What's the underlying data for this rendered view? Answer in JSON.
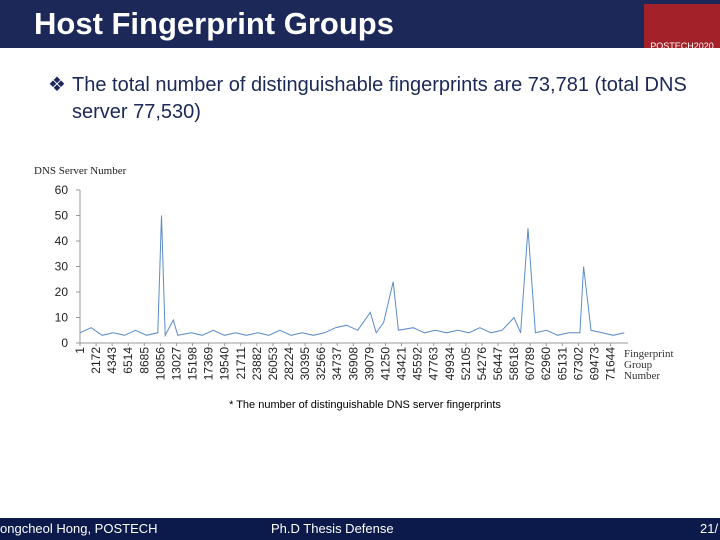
{
  "header": {
    "title": "Host Fingerprint Groups",
    "logo": "POSTECH2020"
  },
  "bullet": "The total number of distinguishable fingerprints are 73,781 (total DNS server 77,530)",
  "chart_data": {
    "type": "line",
    "y_label": "DNS Server Number",
    "x_label": "Fingerprint Group Number",
    "x": [
      1,
      1500,
      3000,
      4500,
      6000,
      7500,
      9000,
      10500,
      11000,
      11500,
      12600,
      13200,
      15000,
      16500,
      18000,
      19500,
      21000,
      22500,
      24000,
      25500,
      27000,
      28500,
      30000,
      31500,
      33000,
      34500,
      36000,
      37500,
      39200,
      40000,
      41000,
      42300,
      43000,
      45000,
      46500,
      48000,
      49500,
      51000,
      52500,
      54000,
      55500,
      57000,
      58600,
      59500,
      60500,
      61500,
      63000,
      64500,
      66000,
      67500,
      68000,
      69000,
      70500,
      72000,
      73500
    ],
    "series": [
      {
        "name": "DNS Server Number",
        "color": "#5b8cc8",
        "values": [
          4,
          6,
          3,
          4,
          3,
          5,
          3,
          4,
          50,
          3,
          9,
          3,
          4,
          3,
          5,
          3,
          4,
          3,
          4,
          3,
          5,
          3,
          4,
          3,
          4,
          6,
          7,
          5,
          12,
          4,
          8,
          24,
          5,
          6,
          4,
          5,
          4,
          5,
          4,
          6,
          4,
          5,
          10,
          4,
          45,
          4,
          5,
          3,
          4,
          4,
          30,
          5,
          4,
          3,
          4
        ]
      }
    ],
    "xlim": [
      0,
      74000
    ],
    "xticks": [
      1,
      2172,
      4343,
      6514,
      8685,
      10856,
      13027,
      15198,
      17369,
      19540,
      21711,
      23882,
      26053,
      28224,
      30395,
      32566,
      34737,
      36908,
      39079,
      41250,
      43421,
      45592,
      47763,
      49934,
      52105,
      54276,
      56447,
      58618,
      60789,
      62960,
      65131,
      67302,
      69473,
      71644
    ],
    "ylim": [
      0,
      60
    ],
    "yticks": [
      0,
      10,
      20,
      30,
      40,
      50,
      60
    ],
    "grid": false
  },
  "caption": "* The number of distinguishable DNS server fingerprints",
  "footer": {
    "author": "ongcheol Hong, POSTECH",
    "event": "Ph.D Thesis Defense",
    "page": "21/"
  }
}
